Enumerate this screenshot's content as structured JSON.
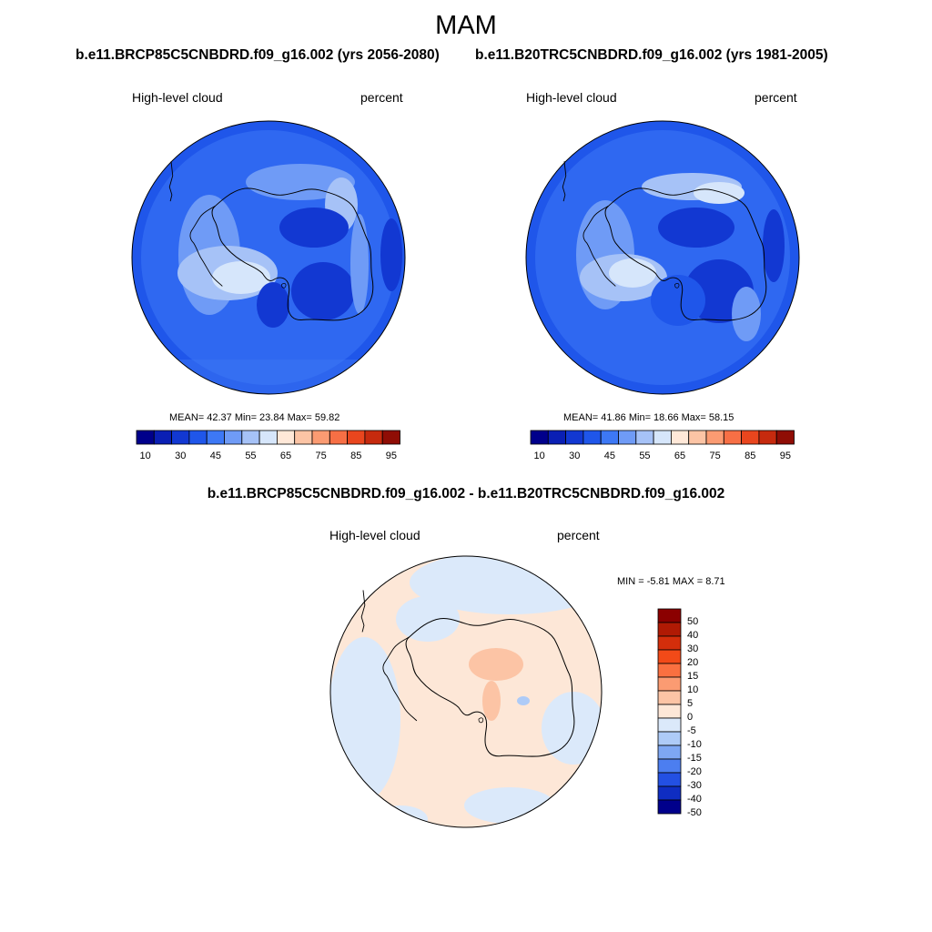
{
  "title": "MAM",
  "panels": [
    {
      "case_title": "b.e11.BRCP85C5CNBDRD.f09_g16.002 (yrs 2056-2080)",
      "left_label": "High-level cloud",
      "right_label": "percent",
      "stats": "MEAN=  42.37  Min=  23.84  Max=  59.82"
    },
    {
      "case_title": "b.e11.B20TRC5CNBDRD.f09_g16.002 (yrs 1981-2005)",
      "left_label": "High-level cloud",
      "right_label": "percent",
      "stats": "MEAN=  41.86  Min=  18.66  Max=  58.15"
    }
  ],
  "colorbar": {
    "tick_labels": [
      "10",
      "30",
      "45",
      "55",
      "65",
      "75",
      "85",
      "95"
    ],
    "colors": [
      "#00008b",
      "#0a1fb4",
      "#1238d2",
      "#1f56ea",
      "#3d78f5",
      "#6f9bf6",
      "#a6c2f7",
      "#d6e6fb",
      "#ffe8d8",
      "#fcc4a5",
      "#fb9b72",
      "#f76f45",
      "#e9461e",
      "#c62a0e",
      "#8f0d05"
    ]
  },
  "diff": {
    "title": "b.e11.BRCP85C5CNBDRD.f09_g16.002 - b.e11.B20TRC5CNBDRD.f09_g16.002",
    "left_label": "High-level cloud",
    "right_label": "percent",
    "stats": "MIN =  -5.81 MAX =   8.71",
    "colorbar_labels": [
      "50",
      "40",
      "30",
      "20",
      "15",
      "10",
      "5",
      "0",
      "-5",
      "-10",
      "-15",
      "-20",
      "-30",
      "-40",
      "-50"
    ],
    "colorbar_colors": [
      "#8b0000",
      "#b01a04",
      "#d42e0b",
      "#f24a18",
      "#fa7040",
      "#fb9b72",
      "#fcc4a5",
      "#fde7d7",
      "#dbe9fa",
      "#aecbf7",
      "#7ea7f3",
      "#4c7ef0",
      "#2350e3",
      "#0f2dc2",
      "#00008b"
    ]
  }
}
